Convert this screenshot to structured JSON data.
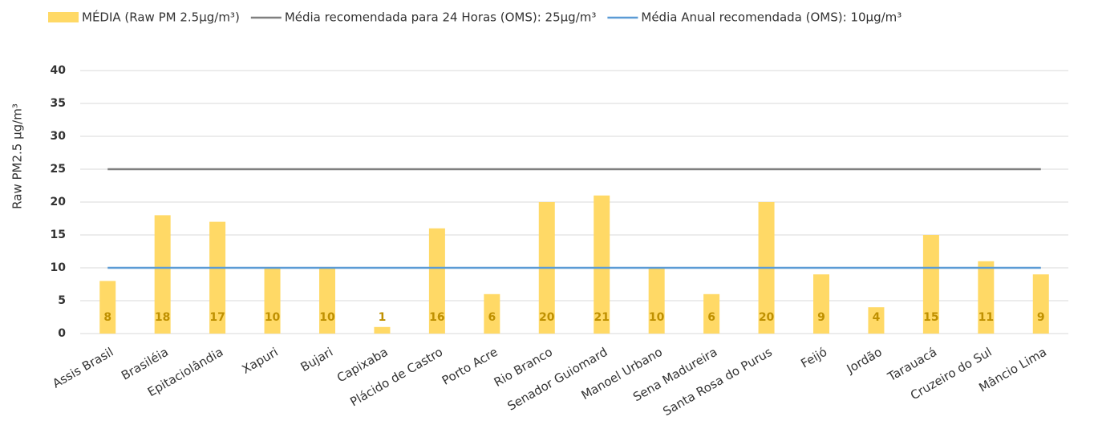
{
  "chart_data": {
    "type": "bar",
    "y_label": "Raw PM2.5 µg/m³",
    "categories": [
      "Assis Brasil",
      "Brasiléia",
      "Epitaciolândia",
      "Xapuri",
      "Bujari",
      "Capixaba",
      "Plácido de Castro",
      "Porto Acre",
      "Rio Branco",
      "Senador Guiomard",
      "Manoel Urbano",
      "Sena Madureira",
      "Santa Rosa do Purus",
      "Feijó",
      "Jordão",
      "Tarauacá",
      "Cruzeiro do Sul",
      "Mâncio Lima"
    ],
    "series": [
      {
        "name": "MÉDIA (Raw PM 2.5µg/m³)",
        "type": "bar",
        "color": "#ffd966",
        "values": [
          8,
          18,
          17,
          10,
          10,
          1,
          16,
          6,
          20,
          21,
          10,
          6,
          20,
          9,
          4,
          15,
          11,
          9
        ]
      },
      {
        "name": "Média recomendada para 24 Horas (OMS): 25µg/m³",
        "type": "line",
        "color": "#7f7f7f",
        "values": [
          25,
          25,
          25,
          25,
          25,
          25,
          25,
          25,
          25,
          25,
          25,
          25,
          25,
          25,
          25,
          25,
          25,
          25
        ]
      },
      {
        "name": "Média Anual recomendada (OMS): 10µg/m³",
        "type": "line",
        "color": "#5b9bd5",
        "values": [
          10,
          10,
          10,
          10,
          10,
          10,
          10,
          10,
          10,
          10,
          10,
          10,
          10,
          10,
          10,
          10,
          10,
          10
        ]
      }
    ],
    "ylim": [
      0,
      40
    ],
    "yticks": [
      0,
      5,
      10,
      15,
      20,
      25,
      30,
      35,
      40
    ],
    "grid": true,
    "legend": "top",
    "label_color": "#bf9000"
  }
}
